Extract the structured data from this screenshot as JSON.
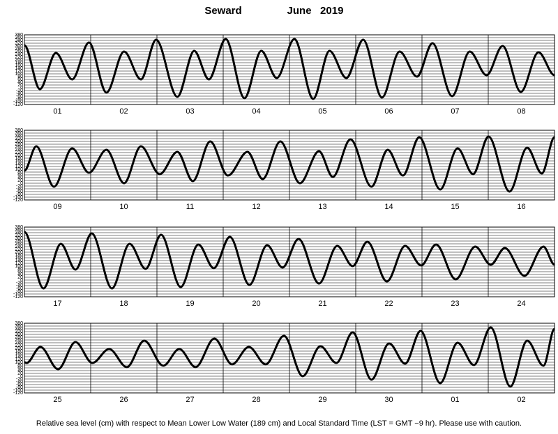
{
  "title": "Seward",
  "subtitle": "June   2019",
  "footnote": "Relative sea level (cm) with respect to Mean Lower Low Water (189 cm) and Local Standard Time (LST = GMT −9 hr). Please use with caution.",
  "chart_data": [
    {
      "type": "line",
      "categories": [
        "01",
        "02",
        "03",
        "04",
        "05",
        "06",
        "07",
        "08"
      ],
      "xlim": [
        0,
        192
      ],
      "ylim": [
        -120,
        380
      ],
      "yticks": [
        -120,
        -100,
        -80,
        -60,
        -40,
        -20,
        0,
        20,
        40,
        60,
        80,
        100,
        120,
        140,
        160,
        180,
        200,
        220,
        240,
        260,
        280,
        300,
        320,
        340,
        360,
        380
      ],
      "x": [
        0,
        5.6,
        11.4,
        17.3,
        23.4,
        29.7,
        36.1,
        42.2,
        47.7,
        55.4,
        61.5,
        66.8,
        72.9,
        79.7,
        85.8,
        91.4,
        97.8,
        104.6,
        110.5,
        116.6,
        122.7,
        129.5,
        135.9,
        142.2,
        147.8,
        154.9,
        161.3,
        167.4,
        173.2,
        179.8,
        186.2,
        192
      ],
      "series": [
        {
          "color": "#000000",
          "values": [
            305,
            -10,
            250,
            60,
            325,
            -35,
            260,
            60,
            345,
            -65,
            265,
            60,
            350,
            -75,
            265,
            70,
            350,
            -80,
            265,
            70,
            345,
            -70,
            260,
            80,
            320,
            -60,
            260,
            90,
            300,
            -30,
            255,
            90
          ]
        }
      ]
    },
    {
      "type": "line",
      "categories": [
        "09",
        "10",
        "11",
        "12",
        "13",
        "14",
        "15",
        "16"
      ],
      "xlim": [
        0,
        192
      ],
      "ylim": [
        -120,
        380
      ],
      "yticks": [
        -120,
        -100,
        -80,
        -60,
        -40,
        -20,
        0,
        20,
        40,
        60,
        80,
        100,
        120,
        140,
        160,
        180,
        200,
        220,
        240,
        260,
        280,
        300,
        320,
        340,
        360,
        380
      ],
      "x": [
        0,
        4.3,
        10.7,
        17.3,
        23.4,
        29.7,
        36.1,
        42.2,
        49,
        55.4,
        61,
        67.3,
        73.7,
        80.8,
        86.3,
        92.7,
        99.8,
        106.7,
        111.7,
        118.1,
        125.7,
        131.6,
        137.1,
        143,
        150.6,
        156.9,
        162.5,
        168.1,
        175.7,
        182.1,
        187.4,
        192
      ],
      "series": [
        {
          "color": "#000000",
          "values": [
            90,
            265,
            -25,
            250,
            75,
            240,
            0,
            265,
            65,
            225,
            15,
            300,
            55,
            225,
            30,
            300,
            0,
            230,
            45,
            315,
            -25,
            240,
            55,
            330,
            -45,
            250,
            65,
            335,
            -60,
            255,
            70,
            330
          ]
        }
      ]
    },
    {
      "type": "line",
      "categories": [
        "17",
        "18",
        "19",
        "20",
        "21",
        "22",
        "23",
        "24"
      ],
      "xlim": [
        0,
        192
      ],
      "ylim": [
        -120,
        380
      ],
      "yticks": [
        -120,
        -100,
        -80,
        -60,
        -40,
        -20,
        0,
        20,
        40,
        60,
        80,
        100,
        120,
        140,
        160,
        180,
        200,
        220,
        240,
        260,
        280,
        300,
        320,
        340,
        360,
        380
      ],
      "x": [
        0,
        6.9,
        13.2,
        18.5,
        24.4,
        31.7,
        38.1,
        43.9,
        49.5,
        56.6,
        63,
        68.6,
        74.4,
        81.5,
        87.9,
        93.5,
        99.3,
        106.7,
        113.3,
        118.9,
        124.2,
        131.3,
        137.9,
        143.7,
        149.1,
        156.2,
        163.3,
        168.9,
        174,
        181.1,
        188,
        192
      ],
      "series": [
        {
          "color": "#000000",
          "values": [
            345,
            -60,
            260,
            75,
            335,
            -60,
            260,
            80,
            325,
            -50,
            255,
            85,
            310,
            -35,
            250,
            90,
            295,
            -25,
            245,
            100,
            275,
            -10,
            245,
            105,
            255,
            5,
            240,
            110,
            230,
            30,
            240,
            110
          ]
        }
      ]
    },
    {
      "type": "line",
      "categories": [
        "25",
        "26",
        "27",
        "28",
        "29",
        "30",
        "01",
        "02"
      ],
      "xlim": [
        0,
        192
      ],
      "ylim": [
        -120,
        380
      ],
      "yticks": [
        -120,
        -100,
        -80,
        -60,
        -40,
        -20,
        0,
        20,
        40,
        60,
        80,
        100,
        120,
        140,
        160,
        180,
        200,
        220,
        240,
        260,
        280,
        300,
        320,
        340,
        360,
        380
      ],
      "x": [
        0,
        0.8,
        5.8,
        12.2,
        18.5,
        24.6,
        30.7,
        37.1,
        43.4,
        50.3,
        56.1,
        62,
        68.8,
        75.2,
        81.3,
        87.4,
        94,
        100.8,
        107.2,
        113,
        118.9,
        125.7,
        132.1,
        137.9,
        143.5,
        150.6,
        156.9,
        162.8,
        168.9,
        176,
        182.1,
        188,
        192
      ],
      "series": [
        {
          "color": "#000000",
          "values": [
            100,
            95,
            210,
            50,
            245,
            95,
            195,
            65,
            255,
            75,
            195,
            65,
            270,
            85,
            210,
            85,
            290,
            0,
            215,
            95,
            315,
            -25,
            235,
            90,
            325,
            -50,
            240,
            80,
            350,
            -75,
            255,
            75,
            340
          ]
        }
      ]
    }
  ]
}
